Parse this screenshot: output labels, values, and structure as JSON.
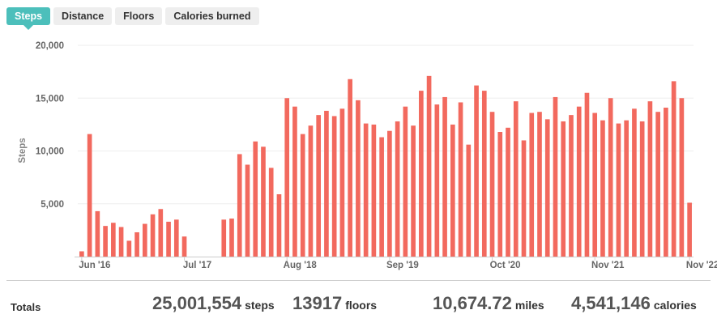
{
  "tabs": [
    {
      "label": "Steps",
      "active": true
    },
    {
      "label": "Distance",
      "active": false
    },
    {
      "label": "Floors",
      "active": false
    },
    {
      "label": "Calories burned",
      "active": false
    }
  ],
  "colors": {
    "accent": "#4cbfbb",
    "bar": "#f2695e",
    "grid": "#eeeeee"
  },
  "chart_data": {
    "type": "bar",
    "title": "",
    "ylabel": "Steps",
    "xlabel": "",
    "ylim": [
      0,
      20000
    ],
    "yticks": [
      5000,
      10000,
      15000,
      20000
    ],
    "ytick_labels": [
      "5,000",
      "10,000",
      "15,000",
      "20,000"
    ],
    "grid": true,
    "start_month": "Jun '16",
    "x_tick_labels": [
      {
        "label": "Jun '16",
        "index": 0
      },
      {
        "label": "Jul '17",
        "index": 13
      },
      {
        "label": "Aug '18",
        "index": 26
      },
      {
        "label": "Sep '19",
        "index": 39
      },
      {
        "label": "Oct '20",
        "index": 52
      },
      {
        "label": "Nov '21",
        "index": 65
      },
      {
        "label": "Nov '22",
        "index": 77
      }
    ],
    "values": [
      500,
      11600,
      4300,
      2900,
      3200,
      2800,
      1500,
      2300,
      3100,
      4000,
      4500,
      3300,
      3500,
      1900,
      0,
      0,
      0,
      0,
      3500,
      3600,
      9700,
      8700,
      10900,
      10400,
      8400,
      5900,
      15000,
      14200,
      11600,
      12400,
      13400,
      13800,
      13300,
      14000,
      16800,
      14800,
      12600,
      12500,
      11300,
      11900,
      12800,
      14200,
      12400,
      15700,
      17100,
      14400,
      15100,
      12500,
      14600,
      10600,
      16200,
      15700,
      13700,
      11800,
      12200,
      14700,
      11000,
      13600,
      13700,
      13000,
      15100,
      12800,
      13400,
      14200,
      15500,
      13600,
      12900,
      15000,
      12600,
      12900,
      14000,
      12800,
      14700,
      13700,
      14100,
      16600,
      15000,
      5100
    ]
  },
  "totals": {
    "label": "Totals",
    "steps": {
      "value": "25,001,554",
      "unit": "steps"
    },
    "floors": {
      "value": "13917",
      "unit": "floors"
    },
    "distance": {
      "value": "10,674.72",
      "unit": "miles"
    },
    "calories": {
      "value": "4,541,146",
      "unit": "calories"
    }
  }
}
